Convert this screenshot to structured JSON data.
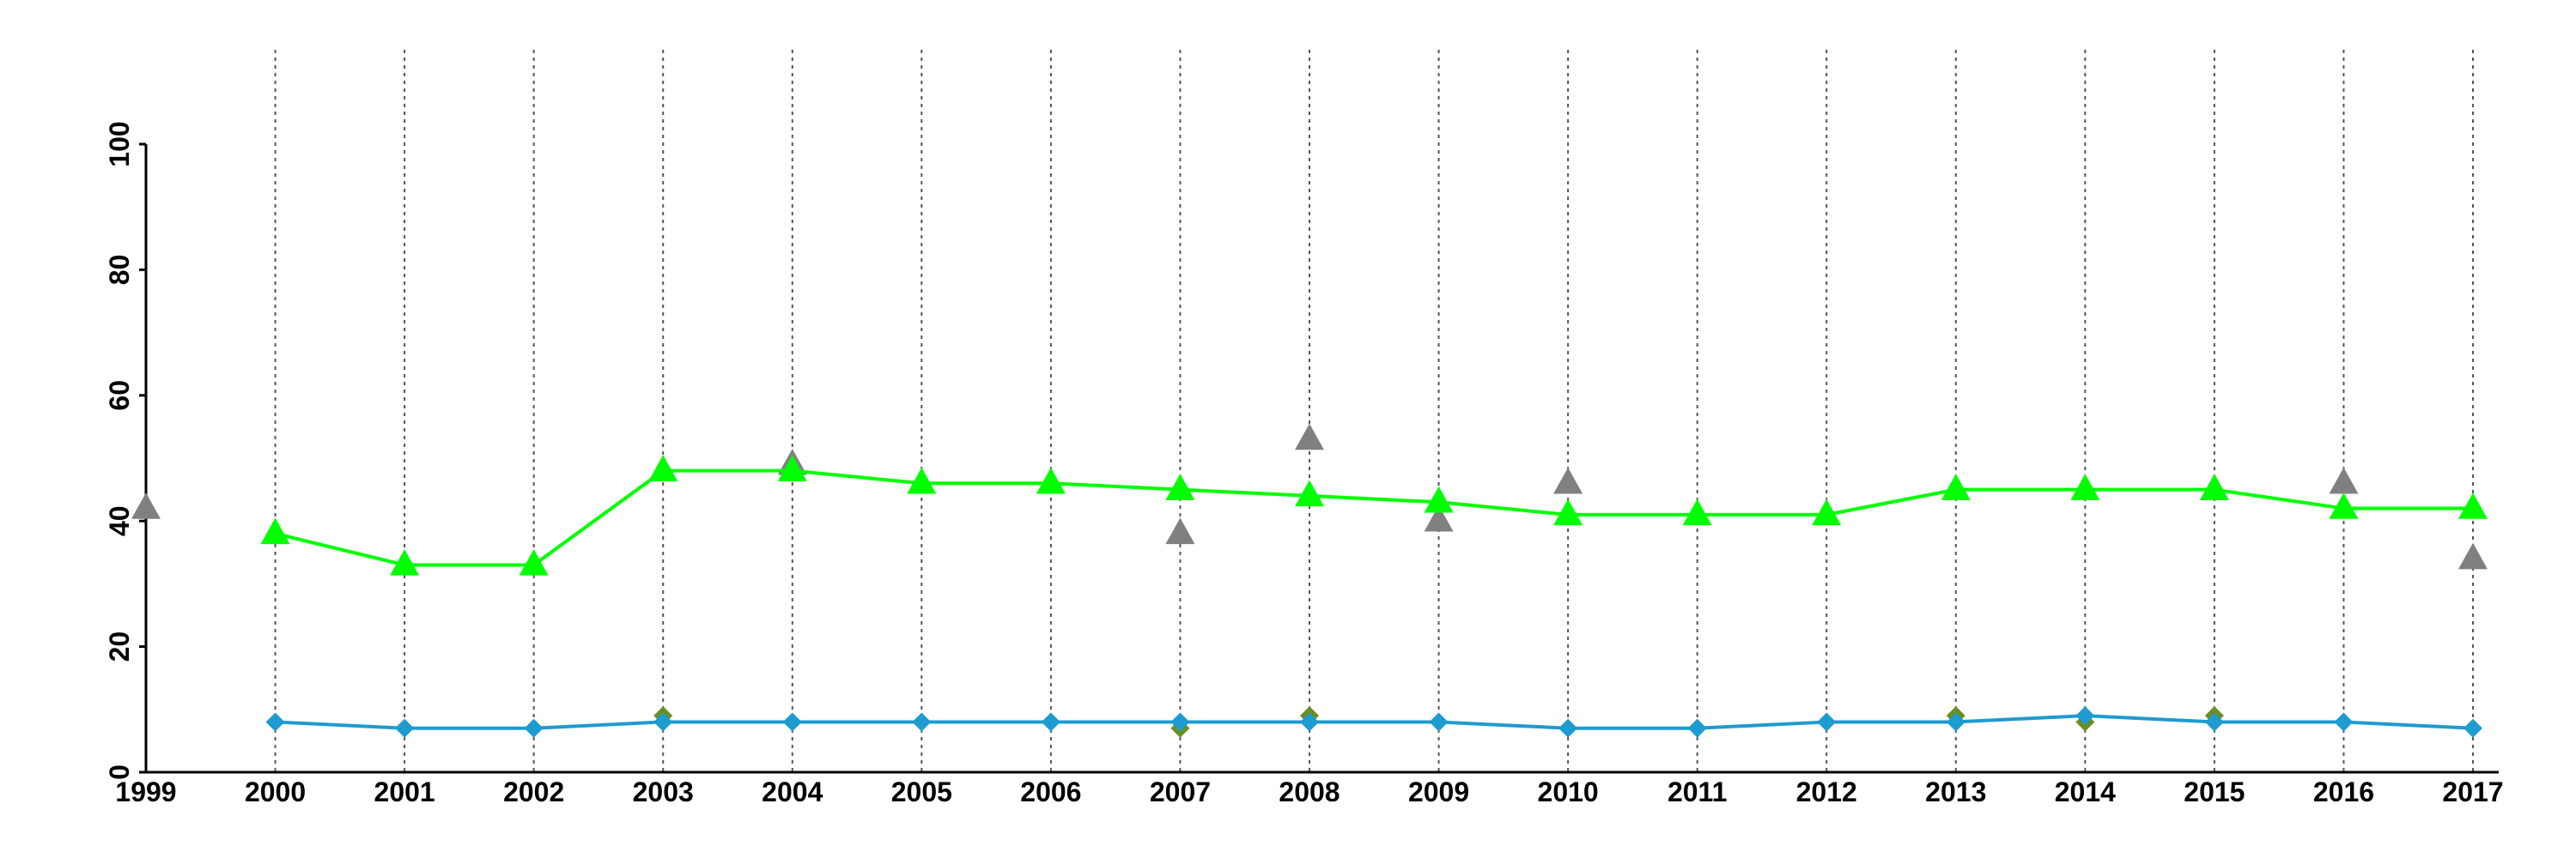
{
  "chart_data": {
    "type": "line",
    "title": "",
    "xlabel": "",
    "ylabel": "",
    "x": [
      "1999",
      "2000",
      "2001",
      "2002",
      "2003",
      "2004",
      "2005",
      "2006",
      "2007",
      "2008",
      "2009",
      "2010",
      "2011",
      "2012",
      "2013",
      "2014",
      "2015",
      "2016",
      "2017"
    ],
    "xlim": [
      1999,
      2017
    ],
    "ylim": [
      0,
      100
    ],
    "y_ticks": [
      "0",
      "20",
      "40",
      "60",
      "80",
      "100"
    ],
    "grid": {
      "vertical_dotted": true,
      "horizontal": false
    },
    "legend": "none",
    "series": [
      {
        "marker": "triangle",
        "color": "#808080",
        "line": false,
        "values": [
          42,
          null,
          null,
          null,
          null,
          49,
          null,
          null,
          38,
          53,
          40,
          46,
          null,
          null,
          null,
          null,
          45,
          46,
          34
        ]
      },
      {
        "marker": "triangle",
        "color": "#00ff00",
        "line": true,
        "values": [
          null,
          38,
          33,
          33,
          48,
          48,
          46,
          46,
          45,
          44,
          43,
          41,
          41,
          41,
          45,
          45,
          45,
          42,
          42
        ]
      },
      {
        "marker": "diamond",
        "color": "#6b8e23",
        "line": false,
        "values": [
          null,
          null,
          null,
          null,
          9,
          null,
          null,
          null,
          7,
          9,
          null,
          null,
          null,
          null,
          9,
          8,
          9,
          null,
          null
        ]
      },
      {
        "marker": "diamond",
        "color": "#1e9bd0",
        "line": true,
        "values": [
          null,
          8,
          7,
          7,
          8,
          8,
          8,
          8,
          8,
          8,
          8,
          7,
          7,
          8,
          8,
          9,
          8,
          8,
          7
        ]
      }
    ]
  }
}
